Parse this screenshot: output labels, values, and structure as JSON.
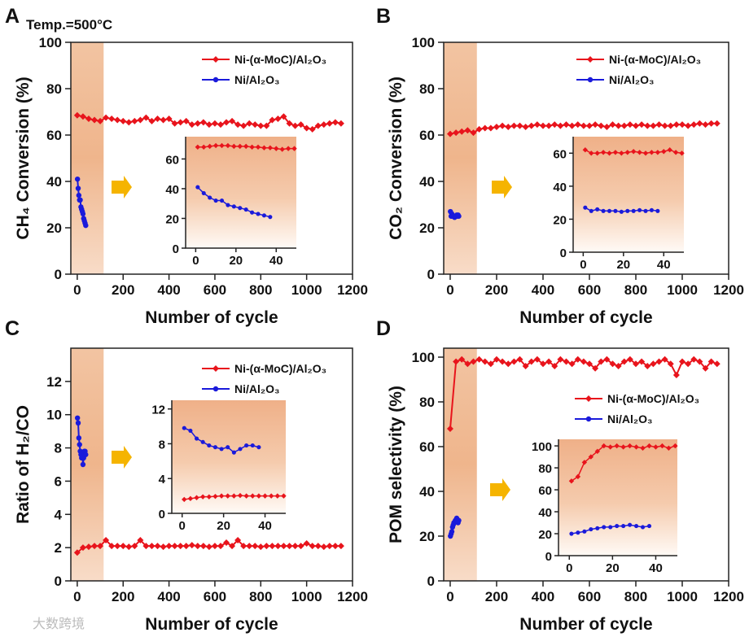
{
  "watermark": "大数跨境",
  "chart_data": [
    {
      "panel": "A",
      "type": "scatter",
      "annotation": "Temp.=500°C",
      "xlabel": "Number of cycle",
      "ylabel": "CH₄ Conversion (%)",
      "xlim": [
        -28,
        1200
      ],
      "ylim": [
        0,
        100
      ],
      "xticks": [
        0,
        200,
        400,
        600,
        800,
        1000,
        1200
      ],
      "yticks": [
        0,
        20,
        40,
        60,
        80,
        100
      ],
      "highlight_range": [
        -28,
        115
      ],
      "legend": [
        "Ni-(α-MoC)/Al₂O₃",
        "Ni/Al₂O₃"
      ],
      "legend_position": "top-right",
      "series": [
        {
          "name": "Ni-(α-MoC)/Al₂O₃",
          "color": "#e8141c",
          "marker": "diamond",
          "x": [
            0,
            25,
            50,
            75,
            100,
            125,
            150,
            175,
            200,
            225,
            250,
            275,
            300,
            325,
            350,
            375,
            400,
            425,
            450,
            475,
            500,
            525,
            550,
            575,
            600,
            625,
            650,
            675,
            700,
            725,
            750,
            775,
            800,
            825,
            850,
            875,
            900,
            925,
            950,
            975,
            1000,
            1025,
            1050,
            1075,
            1100,
            1125,
            1150
          ],
          "y": [
            68.5,
            68,
            67,
            66.5,
            66,
            67.5,
            67,
            66.5,
            66,
            65.5,
            66,
            66.5,
            67.5,
            66,
            67,
            66.5,
            67,
            65,
            65.5,
            66,
            64.5,
            65,
            65.5,
            64.5,
            65,
            64.5,
            65.5,
            66,
            64.5,
            64,
            65,
            64.5,
            64,
            64,
            66.5,
            67,
            68,
            65,
            64,
            64.5,
            63,
            62.5,
            64,
            64.5,
            65,
            65.5,
            65
          ]
        },
        {
          "name": "Ni/Al₂O₃",
          "color": "#1a1adb",
          "marker": "circle",
          "x": [
            1,
            4,
            7,
            10,
            13,
            16,
            19,
            22,
            25,
            28,
            31,
            34,
            37
          ],
          "y": [
            41,
            37,
            34,
            32,
            32,
            29,
            28,
            27,
            26,
            24,
            23,
            22,
            21
          ]
        }
      ],
      "inset": {
        "xlim": [
          -5,
          50
        ],
        "ylim": [
          0,
          75
        ],
        "xticks": [
          0,
          20,
          40
        ],
        "yticks": [
          0,
          20,
          40,
          60
        ],
        "series": [
          {
            "name": "Ni-(α-MoC)/Al₂O₃",
            "color": "#e8141c",
            "marker": "diamond",
            "x": [
              1,
              4,
              7,
              10,
              13,
              16,
              19,
              22,
              25,
              28,
              31,
              34,
              37,
              40,
              43,
              46,
              49
            ],
            "y": [
              68,
              68,
              68.5,
              69,
              69,
              69,
              68.5,
              68.5,
              68.5,
              68,
              68,
              67.5,
              67.5,
              67,
              66.5,
              67,
              67
            ]
          },
          {
            "name": "Ni/Al₂O₃",
            "color": "#1a1adb",
            "marker": "circle",
            "x": [
              1,
              4,
              7,
              10,
              13,
              16,
              19,
              22,
              25,
              28,
              31,
              34,
              37
            ],
            "y": [
              41,
              37,
              34,
              32,
              32,
              29,
              28,
              27,
              26,
              24,
              23,
              22,
              21
            ]
          }
        ]
      }
    },
    {
      "panel": "B",
      "type": "scatter",
      "xlabel": "Number of cycle",
      "ylabel": "CO₂ Conversion (%)",
      "xlim": [
        -28,
        1200
      ],
      "ylim": [
        0,
        100
      ],
      "xticks": [
        0,
        200,
        400,
        600,
        800,
        1000,
        1200
      ],
      "yticks": [
        0,
        20,
        40,
        60,
        80,
        100
      ],
      "highlight_range": [
        -28,
        115
      ],
      "legend": [
        "Ni-(α-MoC)/Al₂O₃",
        "Ni/Al₂O₃"
      ],
      "legend_position": "top-right",
      "series": [
        {
          "name": "Ni-(α-MoC)/Al₂O₃",
          "color": "#e8141c",
          "marker": "diamond",
          "x": [
            0,
            25,
            50,
            75,
            100,
            125,
            150,
            175,
            200,
            225,
            250,
            275,
            300,
            325,
            350,
            375,
            400,
            425,
            450,
            475,
            500,
            525,
            550,
            575,
            600,
            625,
            650,
            675,
            700,
            725,
            750,
            775,
            800,
            825,
            850,
            875,
            900,
            925,
            950,
            975,
            1000,
            1025,
            1050,
            1075,
            1100,
            1125,
            1150
          ],
          "y": [
            60.5,
            61,
            61.5,
            62,
            61,
            62.5,
            63,
            63,
            63.5,
            64,
            63.5,
            64,
            64,
            63.5,
            64,
            64.5,
            64,
            64,
            64.5,
            64,
            64.5,
            64,
            64.5,
            64,
            64,
            64.5,
            64,
            63.5,
            64.5,
            64,
            64,
            64.5,
            64,
            64.5,
            64,
            64,
            64.5,
            64,
            64,
            64.5,
            64.5,
            64,
            64.5,
            65,
            64.5,
            65,
            65
          ]
        },
        {
          "name": "Ni/Al₂O₃",
          "color": "#1a1adb",
          "marker": "circle",
          "x": [
            1,
            4,
            7,
            10,
            13,
            16,
            19,
            22,
            25,
            28,
            31,
            34,
            37
          ],
          "y": [
            27,
            25,
            26,
            25,
            25,
            25,
            24.5,
            25,
            25,
            25.5,
            25,
            25.5,
            25
          ]
        }
      ],
      "inset": {
        "xlim": [
          -5,
          50
        ],
        "ylim": [
          0,
          70
        ],
        "xticks": [
          0,
          20,
          40
        ],
        "yticks": [
          0,
          20,
          40,
          60
        ],
        "series": [
          {
            "name": "Ni-(α-MoC)/Al₂O₃",
            "color": "#e8141c",
            "marker": "diamond",
            "x": [
              1,
              4,
              7,
              10,
              13,
              16,
              19,
              22,
              25,
              28,
              31,
              34,
              37,
              40,
              43,
              46,
              49
            ],
            "y": [
              62,
              60,
              60,
              60.5,
              60,
              60.5,
              60,
              60.5,
              61,
              60.5,
              60,
              60.5,
              60.5,
              61,
              62,
              60.5,
              60
            ]
          },
          {
            "name": "Ni/Al₂O₃",
            "color": "#1a1adb",
            "marker": "circle",
            "x": [
              1,
              4,
              7,
              10,
              13,
              16,
              19,
              22,
              25,
              28,
              31,
              34,
              37
            ],
            "y": [
              27,
              25,
              26,
              25,
              25,
              25,
              24.5,
              25,
              25,
              25.5,
              25,
              25.5,
              25
            ]
          }
        ]
      }
    },
    {
      "panel": "C",
      "type": "scatter",
      "xlabel": "Number of cycle",
      "ylabel": "Ratio of H₂/CO",
      "xlim": [
        -28,
        1200
      ],
      "ylim": [
        0,
        14
      ],
      "xticks": [
        0,
        200,
        400,
        600,
        800,
        1000,
        1200
      ],
      "yticks": [
        0,
        2,
        4,
        6,
        8,
        10,
        12
      ],
      "highlight_range": [
        -28,
        115
      ],
      "legend": [
        "Ni-(α-MoC)/Al₂O₃",
        "Ni/Al₂O₃"
      ],
      "legend_position": "top-right",
      "series": [
        {
          "name": "Ni-(α-MoC)/Al₂O₃",
          "color": "#e8141c",
          "marker": "diamond",
          "x": [
            0,
            25,
            50,
            75,
            100,
            125,
            150,
            175,
            200,
            225,
            250,
            275,
            300,
            325,
            350,
            375,
            400,
            425,
            450,
            475,
            500,
            525,
            550,
            575,
            600,
            625,
            650,
            675,
            700,
            725,
            750,
            775,
            800,
            825,
            850,
            875,
            900,
            925,
            950,
            975,
            1000,
            1025,
            1050,
            1075,
            1100,
            1125,
            1150
          ],
          "y": [
            1.7,
            2.0,
            2.05,
            2.1,
            2.1,
            2.45,
            2.1,
            2.1,
            2.1,
            2.05,
            2.1,
            2.45,
            2.1,
            2.1,
            2.1,
            2.05,
            2.1,
            2.1,
            2.1,
            2.1,
            2.15,
            2.1,
            2.1,
            2.05,
            2.1,
            2.1,
            2.3,
            2.1,
            2.45,
            2.1,
            2.1,
            2.1,
            2.05,
            2.1,
            2.1,
            2.1,
            2.1,
            2.1,
            2.1,
            2.1,
            2.25,
            2.1,
            2.1,
            2.05,
            2.1,
            2.1,
            2.1
          ]
        },
        {
          "name": "Ni/Al₂O₃",
          "color": "#1a1adb",
          "marker": "circle",
          "x": [
            1,
            4,
            7,
            10,
            13,
            16,
            19,
            22,
            25,
            28,
            31,
            34,
            37
          ],
          "y": [
            9.8,
            9.5,
            8.6,
            8.2,
            7.8,
            7.6,
            7.4,
            7.6,
            7.0,
            7.4,
            7.8,
            7.8,
            7.6
          ]
        }
      ],
      "inset": {
        "xlim": [
          -5,
          50
        ],
        "ylim": [
          0,
          13
        ],
        "xticks": [
          0,
          20,
          40
        ],
        "yticks": [
          0,
          4,
          8,
          12
        ],
        "series": [
          {
            "name": "Ni-(α-MoC)/Al₂O₃",
            "color": "#e8141c",
            "marker": "diamond",
            "x": [
              1,
              4,
              7,
              10,
              13,
              16,
              19,
              22,
              25,
              28,
              31,
              34,
              37,
              40,
              43,
              46,
              49
            ],
            "y": [
              1.6,
              1.7,
              1.8,
              1.9,
              1.9,
              1.95,
              2.0,
              2.0,
              2.0,
              2.05,
              2.0,
              2.0,
              2.0,
              2.0,
              2.0,
              2.0,
              2.0
            ]
          },
          {
            "name": "Ni/Al₂O₃",
            "color": "#1a1adb",
            "marker": "circle",
            "x": [
              1,
              4,
              7,
              10,
              13,
              16,
              19,
              22,
              25,
              28,
              31,
              34,
              37
            ],
            "y": [
              9.8,
              9.5,
              8.6,
              8.2,
              7.8,
              7.6,
              7.4,
              7.6,
              7.0,
              7.4,
              7.8,
              7.8,
              7.6
            ]
          }
        ]
      }
    },
    {
      "panel": "D",
      "type": "scatter",
      "xlabel": "Number of cycle",
      "ylabel": "POM selectivity (%)",
      "xlim": [
        -28,
        1200
      ],
      "ylim": [
        0,
        104
      ],
      "xticks": [
        0,
        200,
        400,
        600,
        800,
        1000,
        1200
      ],
      "yticks": [
        0,
        20,
        40,
        60,
        80,
        100
      ],
      "highlight_range": [
        -28,
        115
      ],
      "legend": [
        "Ni-(α-MoC)/Al₂O₃",
        "Ni/Al₂O₃"
      ],
      "legend_position": "center-right",
      "series": [
        {
          "name": "Ni-(α-MoC)/Al₂O₃",
          "color": "#e8141c",
          "marker": "diamond",
          "x": [
            0,
            25,
            50,
            75,
            100,
            125,
            150,
            175,
            200,
            225,
            250,
            275,
            300,
            325,
            350,
            375,
            400,
            425,
            450,
            475,
            500,
            525,
            550,
            575,
            600,
            625,
            650,
            675,
            700,
            725,
            750,
            775,
            800,
            825,
            850,
            875,
            900,
            925,
            950,
            975,
            1000,
            1025,
            1050,
            1075,
            1100,
            1125,
            1150
          ],
          "y": [
            68,
            98,
            99,
            97,
            98,
            99,
            98,
            97,
            99,
            98,
            97,
            98,
            99,
            96,
            98,
            99,
            97,
            98,
            96,
            99,
            98,
            97,
            99,
            98,
            97,
            95,
            98,
            99,
            97,
            96,
            98,
            99,
            97,
            98,
            96,
            97,
            98,
            99,
            97,
            92,
            98,
            97,
            99,
            98,
            95,
            98,
            97
          ]
        },
        {
          "name": "Ni/Al₂O₃",
          "color": "#1a1adb",
          "marker": "circle",
          "x": [
            1,
            4,
            7,
            10,
            13,
            16,
            19,
            22,
            25,
            28,
            31,
            34,
            37
          ],
          "y": [
            20,
            21,
            22,
            24,
            25,
            26,
            26,
            27,
            27,
            28,
            27,
            26,
            27
          ]
        }
      ],
      "inset": {
        "xlim": [
          -5,
          50
        ],
        "ylim": [
          0,
          106
        ],
        "xticks": [
          0,
          20,
          40
        ],
        "yticks": [
          0,
          20,
          40,
          60,
          80,
          100
        ],
        "series": [
          {
            "name": "Ni-(α-MoC)/Al₂O₃",
            "color": "#e8141c",
            "marker": "diamond",
            "x": [
              1,
              4,
              7,
              10,
              13,
              16,
              19,
              22,
              25,
              28,
              31,
              34,
              37,
              40,
              43,
              46,
              49
            ],
            "y": [
              68,
              72,
              85,
              90,
              95,
              100,
              99,
              100,
              99,
              100,
              99,
              98,
              100,
              99,
              100,
              98,
              100
            ]
          },
          {
            "name": "Ni/Al₂O₃",
            "color": "#1a1adb",
            "marker": "circle",
            "x": [
              1,
              4,
              7,
              10,
              13,
              16,
              19,
              22,
              25,
              28,
              31,
              34,
              37
            ],
            "y": [
              20,
              21,
              22,
              24,
              25,
              26,
              26,
              27,
              27,
              28,
              27,
              26,
              27
            ]
          }
        ]
      }
    }
  ]
}
